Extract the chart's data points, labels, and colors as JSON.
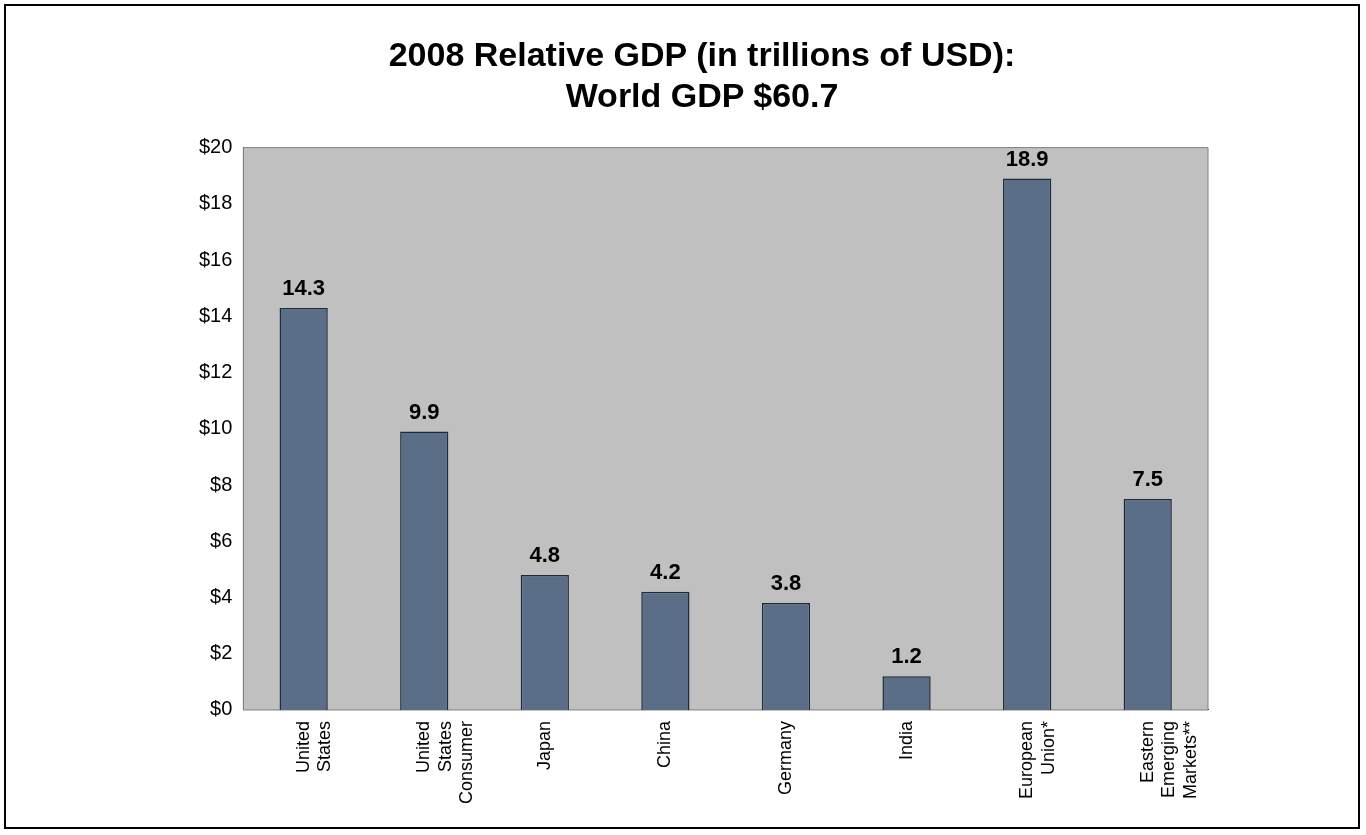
{
  "chart_data": {
    "type": "bar",
    "title": [
      "2008 Relative GDP (in trillions of USD):",
      "World GDP $60.7"
    ],
    "categories": [
      "United States",
      "United States Consumer",
      "Japan",
      "China",
      "Germany",
      "India",
      "European Union*",
      "Eastern Emerging Markets**"
    ],
    "values": [
      14.3,
      9.9,
      4.8,
      4.2,
      3.8,
      1.2,
      18.9,
      7.5
    ],
    "color": "#5a6e87",
    "ylim": [
      0,
      20
    ],
    "yticks": [
      {
        "value": 0,
        "label": "$0"
      },
      {
        "value": 2,
        "label": "$2"
      },
      {
        "value": 4,
        "label": "$4"
      },
      {
        "value": 6,
        "label": "$6"
      },
      {
        "value": 8,
        "label": "$8"
      },
      {
        "value": 10,
        "label": "$10"
      },
      {
        "value": 12,
        "label": "$12"
      },
      {
        "value": 14,
        "label": "$14"
      },
      {
        "value": 16,
        "label": "$16"
      },
      {
        "value": 18,
        "label": "$18"
      },
      {
        "value": 20,
        "label": "$20"
      }
    ],
    "data_labels": true,
    "grid": false,
    "legend": false
  }
}
